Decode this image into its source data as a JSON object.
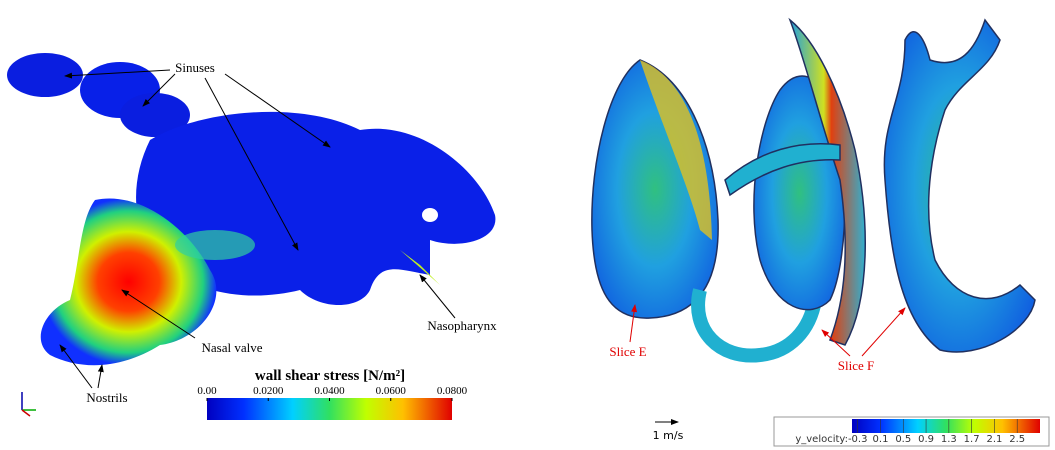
{
  "left_panel": {
    "labels": {
      "sinuses": "Sinuses",
      "nasal_valve": "Nasal valve",
      "nostrils": "Nostrils",
      "nasopharynx": "Nasopharynx"
    },
    "colorbar": {
      "title": "wall shear stress [N/m²]",
      "range": [
        0,
        0.08
      ],
      "ticks": [
        {
          "value": 0,
          "label": "0.00"
        },
        {
          "value": 0.02,
          "label": "0.0200"
        },
        {
          "value": 0.04,
          "label": "0.0400"
        },
        {
          "value": 0.06,
          "label": "0.0600"
        },
        {
          "value": 0.08,
          "label": "0.0800"
        }
      ]
    }
  },
  "right_panel": {
    "labels": {
      "slice_e": "Slice E",
      "slice_f": "Slice F"
    },
    "scale_arrow": "1 m/s",
    "colorbar": {
      "title": "y_velocity:",
      "range": [
        -0.4,
        2.9
      ],
      "ticks": [
        -0.3,
        0.1,
        0.5,
        0.9,
        1.3,
        1.7,
        2.1,
        2.5
      ]
    }
  }
}
